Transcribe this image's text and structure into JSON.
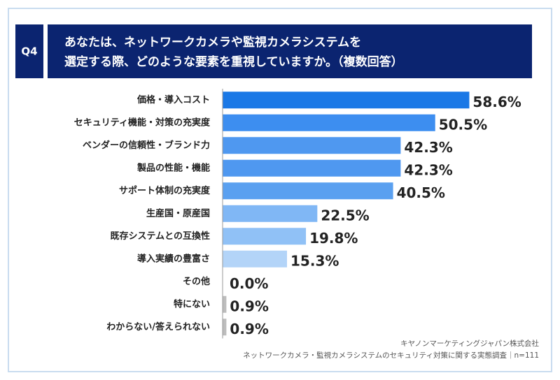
{
  "chart_data": {
    "type": "bar",
    "orientation": "horizontal",
    "question": "Q4",
    "title": [
      "あなたは、ネットワークカメラや監視カメラシステムを",
      "選定する際、どのような要素を重視していますか。（複数回答）"
    ],
    "categories": [
      "価格・導入コスト",
      "セキュリティ機能・対策の充実度",
      "ベンダーの信頼性・ブランド力",
      "製品の性能・機能",
      "サポート体制の充実度",
      "生産国・原産国",
      "既存システムとの互換性",
      "導入実績の豊富さ",
      "その他",
      "特にない",
      "わからない/答えられない"
    ],
    "values": [
      58.6,
      50.5,
      42.3,
      42.3,
      40.5,
      22.5,
      19.8,
      15.3,
      0.0,
      0.9,
      0.9
    ],
    "value_labels": [
      "58.6%",
      "50.5%",
      "42.3%",
      "42.3%",
      "40.5%",
      "22.5%",
      "19.8%",
      "15.3%",
      "0.0%",
      "0.9%",
      "0.9%"
    ],
    "colors": [
      "#1a78e6",
      "#3d8ef0",
      "#4f98f0",
      "#4f98f0",
      "#5aa0f0",
      "#80b7f5",
      "#90c1f6",
      "#b3d4f8",
      "#bdbdbd",
      "#bdbdbd",
      "#bdbdbd"
    ],
    "xlim": [
      0,
      70
    ],
    "source": [
      "キヤノンマーケティングジャパン株式会社",
      "ネットワークカメラ・監視カメラシステムのセキュリティ対策に関する実態調査｜n=111"
    ]
  }
}
